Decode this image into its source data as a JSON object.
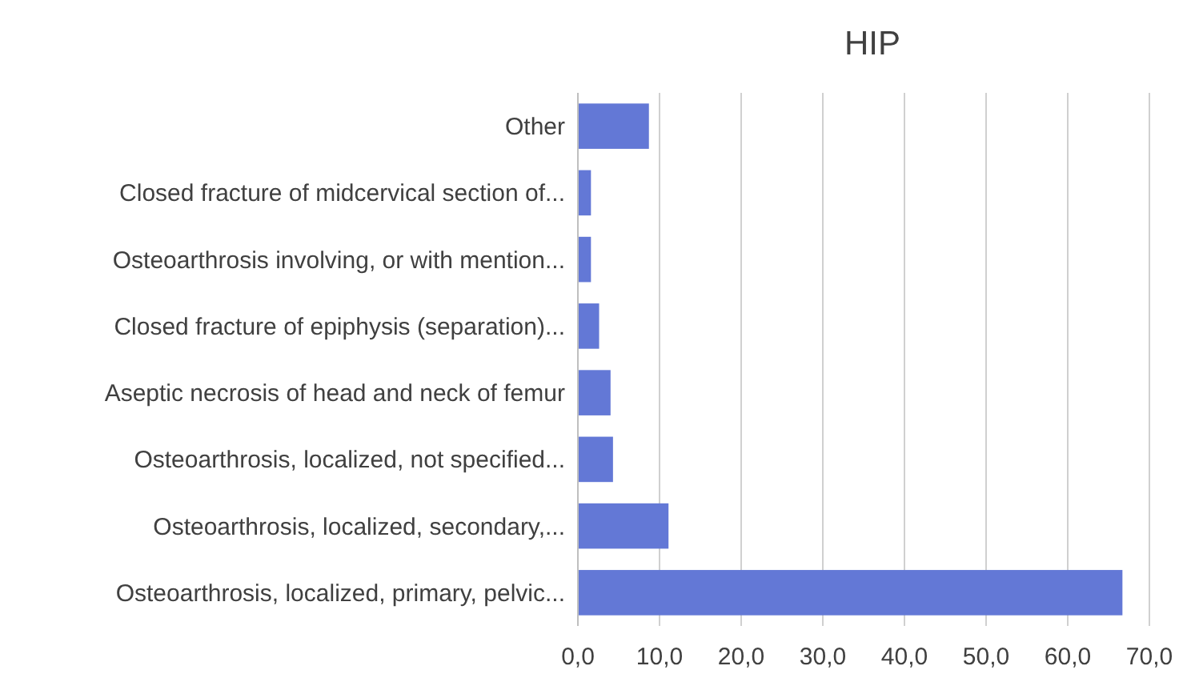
{
  "chart_data": {
    "type": "bar",
    "orientation": "horizontal",
    "title": "HIP",
    "categories": [
      "Other",
      "Closed fracture of midcervical section of...",
      "Osteoarthrosis involving, or with mention...",
      "Closed fracture of epiphysis (separation)...",
      "Aseptic necrosis of head and neck of femur",
      "Osteoarthrosis, localized, not specified...",
      "Osteoarthrosis, localized, secondary,...",
      "Osteoarthrosis, localized, primary, pelvic..."
    ],
    "values": [
      8.7,
      1.6,
      1.6,
      2.6,
      4.0,
      4.3,
      11.1,
      66.7
    ],
    "color": "#6378d6",
    "xlim": [
      0,
      70
    ],
    "xticks": [
      {
        "value": 0,
        "label": "0,0"
      },
      {
        "value": 10,
        "label": "10,0"
      },
      {
        "value": 20,
        "label": "20,0"
      },
      {
        "value": 30,
        "label": "30,0"
      },
      {
        "value": 40,
        "label": "40,0"
      },
      {
        "value": 50,
        "label": "50,0"
      },
      {
        "value": 60,
        "label": "60,0"
      },
      {
        "value": 70,
        "label": "70,0"
      }
    ],
    "grid": "x"
  }
}
